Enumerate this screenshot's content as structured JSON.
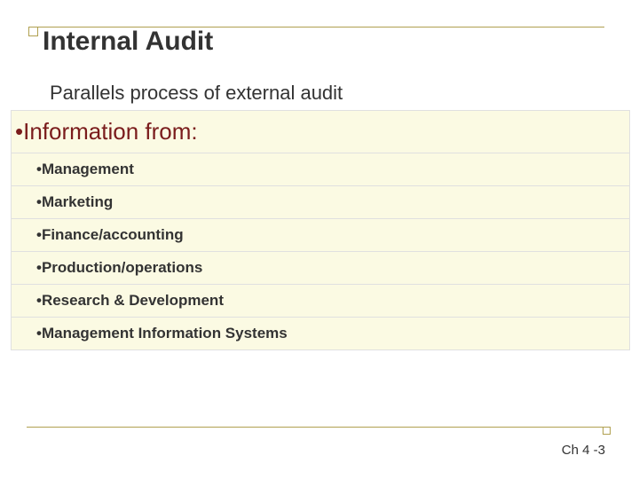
{
  "title": "Internal Audit",
  "subtitle": "Parallels process of external audit",
  "heading": {
    "bullet": "•",
    "text": "Information from:"
  },
  "items": [
    {
      "bullet": "•",
      "text": "Management"
    },
    {
      "bullet": "•",
      "text": "Marketing"
    },
    {
      "bullet": "•",
      "text": "Finance/accounting"
    },
    {
      "bullet": "•",
      "text": "Production/operations"
    },
    {
      "bullet": "•",
      "text": "Research & Development"
    },
    {
      "bullet": "•",
      "text": "Management Information Systems"
    }
  ],
  "pageNumber": "Ch 4 -3",
  "colors": {
    "accent": "#b0a050",
    "headingColor": "#7a1c1c",
    "highlightBg": "#fbfae3",
    "border": "#e0e0e0",
    "text": "#333333"
  },
  "typography": {
    "titleSize": 30,
    "subtitleSize": 22,
    "headingSize": 26,
    "itemSize": 17,
    "footerSize": 15
  }
}
